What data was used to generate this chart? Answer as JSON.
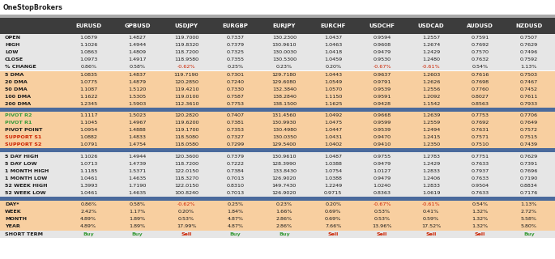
{
  "logo_text": "OneStopBrokers",
  "columns": [
    "",
    "EURUSD",
    "GPBUSD",
    "USDJPY",
    "EURGBP",
    "EURJPY",
    "EURCHF",
    "USDCHF",
    "USDCAD",
    "AUDUSD",
    "NZDUSD"
  ],
  "row_labels": [
    "OPEN",
    "HIGH",
    "LOW",
    "CLOSE",
    "% CHANGE",
    "5 DMA",
    "20 DMA",
    "50 DMA",
    "100 DMA",
    "200 DMA",
    "PIVOT R2",
    "PIVOT R1",
    "PIVOT POINT",
    "SUPPORT S1",
    "SUPPORT S2",
    "5 DAY HIGH",
    "5 DAY LOW",
    "1 MONTH HIGH",
    "1 MONTH LOW",
    "52 WEEK HIGH",
    "52 WEEK LOW",
    "DAY*",
    "WEEK",
    "MONTH",
    "YEAR",
    "SHORT TERM"
  ],
  "data": {
    "EURUSD": [
      "1.0879",
      "1.1026",
      "1.0863",
      "1.0973",
      "0.86%",
      "1.0835",
      "1.0775",
      "1.1087",
      "1.1622",
      "1.2345",
      "1.1117",
      "1.1045",
      "1.0954",
      "1.0882",
      "1.0791",
      "1.1026",
      "1.0713",
      "1.1185",
      "1.0461",
      "1.3993",
      "1.0461",
      "0.86%",
      "2.42%",
      "4.89%",
      "4.89%",
      "Buy"
    ],
    "GPBUSD": [
      "1.4827",
      "1.4944",
      "1.4809",
      "1.4917",
      "0.58%",
      "1.4837",
      "1.4879",
      "1.5120",
      "1.5305",
      "1.5903",
      "1.5023",
      "1.4967",
      "1.4888",
      "1.4833",
      "1.4754",
      "1.4944",
      "1.4739",
      "1.5371",
      "1.4635",
      "1.7190",
      "1.4635",
      "0.58%",
      "1.17%",
      "1.89%",
      "1.89%",
      "Buy"
    ],
    "USDJPY": [
      "119.7000",
      "119.8320",
      "118.7200",
      "118.9580",
      "-0.62%",
      "119.7190",
      "120.2850",
      "119.4210",
      "119.0100",
      "112.3610",
      "120.2820",
      "119.6200",
      "119.1700",
      "118.5080",
      "118.0580",
      "120.3600",
      "118.7200",
      "122.0150",
      "118.3270",
      "122.0150",
      "100.8240",
      "-0.62%",
      "0.20%",
      "0.53%",
      "17.99%",
      "Sell"
    ],
    "EURGBP": [
      "0.7337",
      "0.7379",
      "0.7325",
      "0.7355",
      "0.25%",
      "0.7301",
      "0.7240",
      "0.7330",
      "0.7587",
      "0.7753",
      "0.7407",
      "0.7381",
      "0.7353",
      "0.7327",
      "0.7299",
      "0.7379",
      "0.7222",
      "0.7384",
      "0.7013",
      "0.8310",
      "0.7013",
      "0.25%",
      "1.84%",
      "4.87%",
      "4.87%",
      "Buy"
    ],
    "EURJPY": [
      "130.2300",
      "130.9610",
      "130.0030",
      "130.5300",
      "0.23%",
      "129.7180",
      "129.6080",
      "132.3840",
      "138.2840",
      "138.1500",
      "131.4560",
      "130.9930",
      "130.4980",
      "130.0350",
      "129.5400",
      "130.9610",
      "128.3990",
      "133.8430",
      "126.9020",
      "149.7430",
      "126.9020",
      "0.23%",
      "1.66%",
      "2.86%",
      "2.86%",
      "Buy"
    ],
    "EURCHF": [
      "1.0437",
      "1.0463",
      "1.0418",
      "1.0459",
      "0.20%",
      "1.0443",
      "1.0549",
      "1.0570",
      "1.1150",
      "1.1625",
      "1.0492",
      "1.0475",
      "1.0447",
      "1.0431",
      "1.0402",
      "1.0487",
      "1.0388",
      "1.0754",
      "1.0388",
      "1.2249",
      "0.9715",
      "0.20%",
      "0.69%",
      "0.69%",
      "7.66%",
      "Sell"
    ],
    "USDCHF": [
      "0.9594",
      "0.9608",
      "0.9479",
      "0.9530",
      "-0.67%",
      "0.9637",
      "0.9791",
      "0.9539",
      "0.9591",
      "0.9428",
      "0.9668",
      "0.9599",
      "0.9539",
      "0.9470",
      "0.9410",
      "0.9755",
      "0.9479",
      "1.0127",
      "0.9479",
      "1.0240",
      "0.8363",
      "-0.67%",
      "0.53%",
      "0.53%",
      "13.96%",
      "Sell"
    ],
    "USDCAD": [
      "1.2557",
      "1.2674",
      "1.2429",
      "1.2480",
      "-0.61%",
      "1.2603",
      "1.2626",
      "1.2556",
      "1.2092",
      "1.1542",
      "1.2639",
      "1.2559",
      "1.2494",
      "1.2415",
      "1.2350",
      "1.2783",
      "1.2429",
      "1.2833",
      "1.2406",
      "1.2833",
      "1.0619",
      "-0.61%",
      "0.41%",
      "0.59%",
      "17.52%",
      "Sell"
    ],
    "AUDUSD": [
      "0.7591",
      "0.7692",
      "0.7570",
      "0.7632",
      "0.54%",
      "0.7616",
      "0.7698",
      "0.7760",
      "0.8027",
      "0.8563",
      "0.7753",
      "0.7692",
      "0.7631",
      "0.7571",
      "0.7510",
      "0.7751",
      "0.7633",
      "0.7937",
      "0.7633",
      "0.9504",
      "0.7633",
      "0.54%",
      "1.32%",
      "1.32%",
      "1.32%",
      "Sell"
    ],
    "NZDUSD": [
      "0.7507",
      "0.7629",
      "0.7496",
      "0.7592",
      "1.13%",
      "0.7503",
      "0.7467",
      "0.7452",
      "0.7611",
      "0.7933",
      "0.7706",
      "0.7649",
      "0.7572",
      "0.7515",
      "0.7439",
      "0.7629",
      "0.7391",
      "0.7696",
      "0.7190",
      "0.8834",
      "0.7176",
      "1.13%",
      "2.72%",
      "5.58%",
      "5.80%",
      "Buy"
    ]
  },
  "section_colors": {
    "ohlc": "#e6e6e6",
    "dma": "#f8cfa0",
    "pivot": "#f8cfa0",
    "range": "#e6e6e6",
    "pct": "#f8cfa0",
    "short": "#e6e6e6"
  },
  "header_bg": "#3c3c3c",
  "header_fg": "#ffffff",
  "divider_color": "#4a6a9c",
  "pivot_green": "#3a9a3a",
  "pivot_red": "#cc2200",
  "buy_color": "#3a9a3a",
  "sell_color": "#cc2200",
  "neg_pct_color": "#cc2200",
  "label_color": "#1a1a1a",
  "data_color": "#1a1a1a"
}
